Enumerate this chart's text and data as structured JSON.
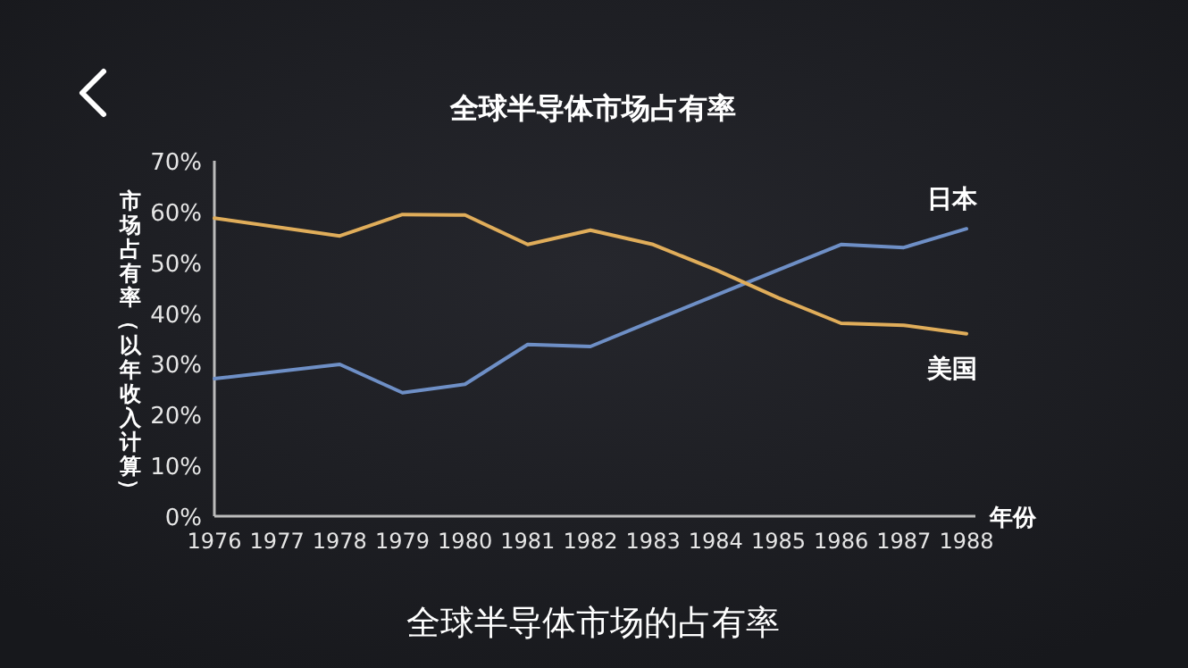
{
  "chart_data": {
    "type": "line",
    "title": "全球半导体市场占有率",
    "ylabel": "市场占有率（以年收入计算）",
    "xlabel": "年份",
    "categories": [
      "1976",
      "1977",
      "1978",
      "1979",
      "1980",
      "1981",
      "1982",
      "1983",
      "1984",
      "1985",
      "1986",
      "1987",
      "1988"
    ],
    "series": [
      {
        "name": "日本",
        "color": "#6e8fc6",
        "values": [
          27.1,
          null,
          29.9,
          24.3,
          26.0,
          33.8,
          33.4,
          38.5,
          43.5,
          48.5,
          53.5,
          52.9,
          56.6
        ]
      },
      {
        "name": "美国",
        "color": "#e0ad5a",
        "values": [
          58.7,
          null,
          55.2,
          59.4,
          59.3,
          53.5,
          56.3,
          53.5,
          48.5,
          43.0,
          38.0,
          37.6,
          35.9
        ]
      }
    ],
    "ylim": [
      0,
      70
    ],
    "yticks": [
      {
        "value": 0,
        "label": "0%"
      },
      {
        "value": 10,
        "label": "10%"
      },
      {
        "value": 20,
        "label": "20%"
      },
      {
        "value": 30,
        "label": "30%"
      },
      {
        "value": 40,
        "label": "40%"
      },
      {
        "value": 50,
        "label": "50%"
      },
      {
        "value": 60,
        "label": "60%"
      },
      {
        "value": 70,
        "label": "70%"
      }
    ],
    "grid": false,
    "legend": false,
    "marker": "none",
    "line_style": "solid",
    "annotations": [
      "全球半导体市场的占有率"
    ]
  }
}
